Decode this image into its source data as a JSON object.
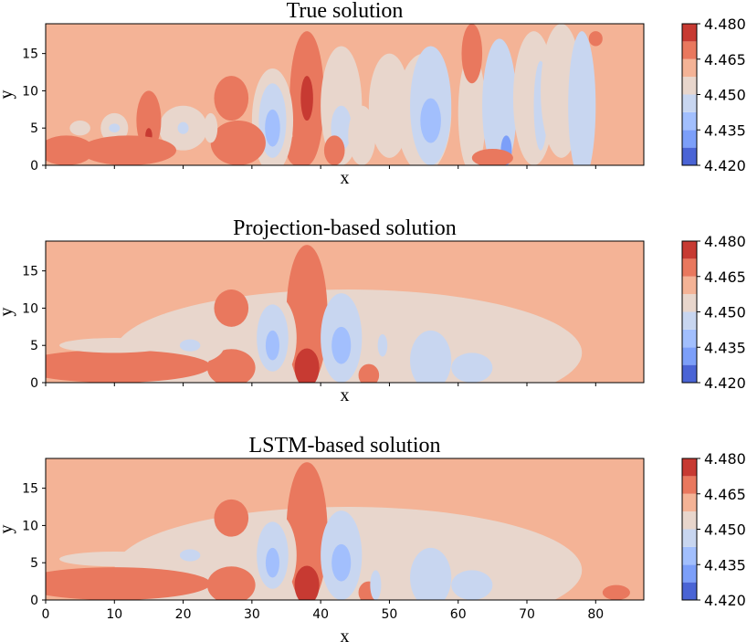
{
  "chart_data": [
    {
      "type": "heatmap",
      "title": "True solution",
      "xlabel": "x",
      "ylabel": "y",
      "xlim": [
        0,
        87
      ],
      "ylim": [
        0,
        19
      ],
      "xticks": [
        "0",
        "10",
        "20",
        "30",
        "40",
        "50",
        "60",
        "70",
        "80"
      ],
      "yticks": [
        "0",
        "5",
        "10",
        "15"
      ],
      "colorbar": {
        "ticks": [
          "4.420",
          "4.435",
          "4.450",
          "4.465",
          "4.480"
        ],
        "levels": [
          4.42,
          4.4275,
          4.435,
          4.4425,
          4.45,
          4.4575,
          4.465,
          4.4725,
          4.48
        ],
        "colors": [
          "#4a64d5",
          "#7c9ff9",
          "#a2bffd",
          "#c8d6f0",
          "#e8d6cc",
          "#f4b396",
          "#e9785e",
          "#c73a32"
        ]
      },
      "blobs": [
        {
          "x": 38,
          "y": 9,
          "rx": 2.5,
          "ry": 9,
          "level": 6
        },
        {
          "x": 38,
          "y": 9,
          "rx": 0.9,
          "ry": 3,
          "level": 7
        },
        {
          "x": 37,
          "y": 2,
          "rx": 2,
          "ry": 2.2,
          "level": 6
        },
        {
          "x": 33,
          "y": 6,
          "rx": 3,
          "ry": 7,
          "level": 4
        },
        {
          "x": 33,
          "y": 6,
          "rx": 2,
          "ry": 5,
          "level": 3
        },
        {
          "x": 33,
          "y": 5,
          "rx": 1.1,
          "ry": 2.5,
          "level": 2
        },
        {
          "x": 27,
          "y": 9,
          "rx": 2.5,
          "ry": 3,
          "level": 6
        },
        {
          "x": 28,
          "y": 3,
          "rx": 4,
          "ry": 3,
          "level": 6
        },
        {
          "x": 20,
          "y": 5,
          "rx": 3.5,
          "ry": 3,
          "level": 4
        },
        {
          "x": 20,
          "y": 5,
          "rx": 0.8,
          "ry": 0.8,
          "level": 3
        },
        {
          "x": 15,
          "y": 6,
          "rx": 1.8,
          "ry": 4,
          "level": 6
        },
        {
          "x": 15,
          "y": 4,
          "rx": 0.5,
          "ry": 1,
          "level": 7
        },
        {
          "x": 10,
          "y": 5,
          "rx": 2,
          "ry": 2,
          "level": 4
        },
        {
          "x": 10,
          "y": 5,
          "rx": 0.8,
          "ry": 0.6,
          "level": 3
        },
        {
          "x": 5,
          "y": 5,
          "rx": 1.5,
          "ry": 1,
          "level": 4
        },
        {
          "x": 12,
          "y": 2,
          "rx": 7,
          "ry": 2,
          "level": 6
        },
        {
          "x": 3,
          "y": 2,
          "rx": 4,
          "ry": 2,
          "level": 6
        },
        {
          "x": 24,
          "y": 5,
          "rx": 1,
          "ry": 2,
          "level": 4
        },
        {
          "x": 43,
          "y": 8,
          "rx": 3,
          "ry": 8,
          "level": 4
        },
        {
          "x": 43,
          "y": 5,
          "rx": 1.5,
          "ry": 3,
          "level": 3
        },
        {
          "x": 46,
          "y": 4,
          "rx": 2,
          "ry": 4,
          "level": 4
        },
        {
          "x": 42,
          "y": 2,
          "rx": 1.5,
          "ry": 2,
          "level": 6
        },
        {
          "x": 50,
          "y": 8,
          "rx": 3,
          "ry": 7,
          "level": 4
        },
        {
          "x": 55,
          "y": 7,
          "rx": 4,
          "ry": 8,
          "level": 4
        },
        {
          "x": 56,
          "y": 8,
          "rx": 3,
          "ry": 8,
          "level": 3
        },
        {
          "x": 56,
          "y": 6,
          "rx": 1.5,
          "ry": 3,
          "level": 2
        },
        {
          "x": 62,
          "y": 7,
          "rx": 2,
          "ry": 8,
          "level": 4
        },
        {
          "x": 66,
          "y": 8,
          "rx": 2.5,
          "ry": 9,
          "level": 3
        },
        {
          "x": 67,
          "y": 2,
          "rx": 0.8,
          "ry": 2,
          "level": 1
        },
        {
          "x": 71,
          "y": 9,
          "rx": 3,
          "ry": 9,
          "level": 4
        },
        {
          "x": 72,
          "y": 8,
          "rx": 1,
          "ry": 6,
          "level": 3
        },
        {
          "x": 75,
          "y": 10,
          "rx": 3,
          "ry": 9,
          "level": 4
        },
        {
          "x": 78,
          "y": 8,
          "rx": 2,
          "ry": 10,
          "level": 3
        },
        {
          "x": 62,
          "y": 15,
          "rx": 1.5,
          "ry": 4,
          "level": 6
        },
        {
          "x": 65,
          "y": 1,
          "rx": 3,
          "ry": 1.2,
          "level": 6
        },
        {
          "x": 80,
          "y": 17,
          "rx": 1,
          "ry": 1,
          "level": 6
        }
      ]
    },
    {
      "type": "heatmap",
      "title": "Projection-based solution",
      "xlabel": "x",
      "ylabel": "y",
      "xlim": [
        0,
        87
      ],
      "ylim": [
        0,
        19
      ],
      "xticks": [
        "0",
        "10",
        "20",
        "30",
        "40",
        "50",
        "60",
        "70",
        "80"
      ],
      "yticks": [
        "0",
        "5",
        "10",
        "15"
      ],
      "colorbar": {
        "ticks": [
          "4.420",
          "4.435",
          "4.450",
          "4.465",
          "4.480"
        ],
        "levels": [
          4.42,
          4.4275,
          4.435,
          4.4425,
          4.45,
          4.4575,
          4.465,
          4.4725,
          4.48
        ],
        "colors": [
          "#4a64d5",
          "#7c9ff9",
          "#a2bffd",
          "#c8d6f0",
          "#e8d6cc",
          "#f4b396",
          "#e9785e",
          "#c73a32"
        ]
      },
      "bg_region": [
        {
          "x": 44,
          "y": 4,
          "rx": 34,
          "ry": 8.5,
          "level": 4
        }
      ],
      "blobs": [
        {
          "x": 38,
          "y": 9,
          "rx": 3,
          "ry": 9.5,
          "level": 6
        },
        {
          "x": 38,
          "y": 2,
          "rx": 1.8,
          "ry": 2.6,
          "level": 7
        },
        {
          "x": 33,
          "y": 6,
          "rx": 3.5,
          "ry": 6,
          "level": 4
        },
        {
          "x": 33,
          "y": 6,
          "rx": 2.3,
          "ry": 4.5,
          "level": 3
        },
        {
          "x": 33,
          "y": 5,
          "rx": 1,
          "ry": 2,
          "level": 2
        },
        {
          "x": 27,
          "y": 10,
          "rx": 2.5,
          "ry": 2.5,
          "level": 6
        },
        {
          "x": 27,
          "y": 2,
          "rx": 3.5,
          "ry": 2.5,
          "level": 6
        },
        {
          "x": 21,
          "y": 5,
          "rx": 5,
          "ry": 2.5,
          "level": 4
        },
        {
          "x": 21,
          "y": 5,
          "rx": 1.5,
          "ry": 0.8,
          "level": 3
        },
        {
          "x": 10,
          "y": 2.2,
          "rx": 14,
          "ry": 2.2,
          "level": 6
        },
        {
          "x": 10,
          "y": 5,
          "rx": 8,
          "ry": 1,
          "level": 4
        },
        {
          "x": 43,
          "y": 6,
          "rx": 3,
          "ry": 6,
          "level": 3
        },
        {
          "x": 43,
          "y": 5,
          "rx": 1.4,
          "ry": 2.5,
          "level": 2
        },
        {
          "x": 47,
          "y": 1,
          "rx": 1.5,
          "ry": 1.5,
          "level": 6
        },
        {
          "x": 56,
          "y": 3,
          "rx": 3,
          "ry": 4,
          "level": 3
        },
        {
          "x": 49,
          "y": 5,
          "rx": 0.7,
          "ry": 1.5,
          "level": 3
        },
        {
          "x": 62,
          "y": 2,
          "rx": 3,
          "ry": 2,
          "level": 3
        }
      ]
    },
    {
      "type": "heatmap",
      "title": "LSTM-based solution",
      "xlabel": "x",
      "ylabel": "y",
      "xlim": [
        0,
        87
      ],
      "ylim": [
        0,
        19
      ],
      "xticks": [
        "0",
        "10",
        "20",
        "30",
        "40",
        "50",
        "60",
        "70",
        "80"
      ],
      "yticks": [
        "0",
        "5",
        "10",
        "15"
      ],
      "colorbar": {
        "ticks": [
          "4.420",
          "4.435",
          "4.450",
          "4.465",
          "4.480"
        ],
        "levels": [
          4.42,
          4.4275,
          4.435,
          4.4425,
          4.45,
          4.4575,
          4.465,
          4.4725,
          4.48
        ],
        "colors": [
          "#4a64d5",
          "#7c9ff9",
          "#a2bffd",
          "#c8d6f0",
          "#e8d6cc",
          "#f4b396",
          "#e9785e",
          "#c73a32"
        ]
      },
      "bg_region": [
        {
          "x": 44,
          "y": 4,
          "rx": 34,
          "ry": 8.5,
          "level": 4
        }
      ],
      "blobs": [
        {
          "x": 38,
          "y": 9,
          "rx": 3,
          "ry": 9.5,
          "level": 6
        },
        {
          "x": 38,
          "y": 2,
          "rx": 1.8,
          "ry": 2.6,
          "level": 7
        },
        {
          "x": 33,
          "y": 6,
          "rx": 3.5,
          "ry": 6,
          "level": 4
        },
        {
          "x": 33,
          "y": 6,
          "rx": 2.3,
          "ry": 4.5,
          "level": 3
        },
        {
          "x": 33,
          "y": 5,
          "rx": 1,
          "ry": 2,
          "level": 2
        },
        {
          "x": 27,
          "y": 11,
          "rx": 2.5,
          "ry": 2.5,
          "level": 6
        },
        {
          "x": 27,
          "y": 2,
          "rx": 3.5,
          "ry": 2.5,
          "level": 6
        },
        {
          "x": 21,
          "y": 6,
          "rx": 5,
          "ry": 2.5,
          "level": 4
        },
        {
          "x": 21,
          "y": 6,
          "rx": 1.5,
          "ry": 0.8,
          "level": 3
        },
        {
          "x": 10,
          "y": 2.2,
          "rx": 14,
          "ry": 2.2,
          "level": 6
        },
        {
          "x": 10,
          "y": 5.5,
          "rx": 8,
          "ry": 1,
          "level": 4
        },
        {
          "x": 43,
          "y": 6,
          "rx": 3,
          "ry": 6,
          "level": 3
        },
        {
          "x": 43,
          "y": 5,
          "rx": 1.4,
          "ry": 2.5,
          "level": 2
        },
        {
          "x": 47,
          "y": 1,
          "rx": 1.5,
          "ry": 1.5,
          "level": 6
        },
        {
          "x": 56,
          "y": 3,
          "rx": 3,
          "ry": 4,
          "level": 3
        },
        {
          "x": 48,
          "y": 2,
          "rx": 0.8,
          "ry": 2,
          "level": 3
        },
        {
          "x": 62,
          "y": 2,
          "rx": 3,
          "ry": 2,
          "level": 3
        },
        {
          "x": 83,
          "y": 1,
          "rx": 2,
          "ry": 1,
          "level": 6
        }
      ]
    }
  ]
}
